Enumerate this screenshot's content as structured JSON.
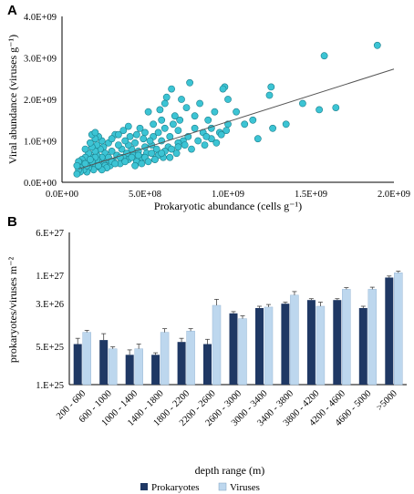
{
  "chart_data": [
    {
      "panel": "A",
      "type": "scatter",
      "xlabel": "Prokaryotic abundance (cells g⁻¹)",
      "ylabel": "Viral abundance (viruses g⁻¹)",
      "xlim": [
        0,
        2000000000
      ],
      "ylim": [
        0,
        4000000000
      ],
      "x_ticks": [
        0,
        500000000,
        1000000000,
        1500000000,
        2000000000
      ],
      "x_tick_labels": [
        "0.0E+00",
        "5.0E+08",
        "1.0E+09",
        "1.5E+09",
        "2.0E+09"
      ],
      "y_ticks": [
        0,
        1000000000,
        2000000000,
        3000000000,
        4000000000
      ],
      "y_tick_labels": [
        "0.0E+00",
        "1.0E+09",
        "2.0E+09",
        "3.0E+09",
        "4.0E+09"
      ],
      "grid": false,
      "marker_color": "#3cc4d4",
      "trendline": {
        "x": [
          100000000,
          2000000000
        ],
        "y": [
          320000000,
          2730000000
        ]
      },
      "points": [
        [
          1900000000.0,
          3300000000.0
        ],
        [
          1580000000.0,
          3050000000.0
        ],
        [
          1650000000.0,
          1800000000.0
        ],
        [
          1550000000.0,
          1750000000.0
        ],
        [
          1450000000.0,
          1900000000.0
        ],
        [
          1350000000.0,
          1400000000.0
        ],
        [
          1260000000.0,
          2300000000.0
        ],
        [
          1250000000.0,
          2100000000.0
        ],
        [
          1270000000.0,
          1300000000.0
        ],
        [
          1150000000.0,
          1500000000.0
        ],
        [
          1180000000.0,
          1050000000.0
        ],
        [
          1100000000.0,
          1400000000.0
        ],
        [
          1050000000.0,
          1700000000.0
        ],
        [
          1000000000.0,
          2000000000.0
        ],
        [
          980000000.0,
          2300000000.0
        ],
        [
          970000000.0,
          2250000000.0
        ],
        [
          1000000000.0,
          1400000000.0
        ],
        [
          950000000.0,
          1200000000.0
        ],
        [
          920000000.0,
          1700000000.0
        ],
        [
          900000000.0,
          1050000000.0
        ],
        [
          880000000.0,
          1500000000.0
        ],
        [
          860000000.0,
          900000000.0
        ],
        [
          850000000.0,
          1200000000.0
        ],
        [
          830000000.0,
          1900000000.0
        ],
        [
          800000000.0,
          1600000000.0
        ],
        [
          800000000.0,
          1300000000.0
        ],
        [
          780000000.0,
          800000000.0
        ],
        [
          770000000.0,
          2400000000.0
        ],
        [
          760000000.0,
          1100000000.0
        ],
        [
          750000000.0,
          1800000000.0
        ],
        [
          730000000.0,
          1000000000.0
        ],
        [
          720000000.0,
          2000000000.0
        ],
        [
          710000000.0,
          1500000000.0
        ],
        [
          700000000.0,
          1250000000.0
        ],
        [
          700000000.0,
          950000000.0
        ],
        [
          690000000.0,
          700000000.0
        ],
        [
          680000000.0,
          1600000000.0
        ],
        [
          670000000.0,
          1400000000.0
        ],
        [
          660000000.0,
          2250000000.0
        ],
        [
          650000000.0,
          1100000000.0
        ],
        [
          640000000.0,
          850000000.0
        ],
        [
          630000000.0,
          2050000000.0
        ],
        [
          620000000.0,
          1900000000.0
        ],
        [
          620000000.0,
          1300000000.0
        ],
        [
          610000000.0,
          600000000.0
        ],
        [
          600000000.0,
          1500000000.0
        ],
        [
          600000000.0,
          1000000000.0
        ],
        [
          590000000.0,
          1750000000.0
        ],
        [
          580000000.0,
          1200000000.0
        ],
        [
          570000000.0,
          800000000.0
        ],
        [
          560000000.0,
          550000000.0
        ],
        [
          550000000.0,
          1100000000.0
        ],
        [
          550000000.0,
          1400000000.0
        ],
        [
          540000000.0,
          900000000.0
        ],
        [
          530000000.0,
          1000000000.0
        ],
        [
          520000000.0,
          1700000000.0
        ],
        [
          510000000.0,
          700000000.0
        ],
        [
          500000000.0,
          1200000000.0
        ],
        [
          500000000.0,
          850000000.0
        ],
        [
          490000000.0,
          1050000000.0
        ],
        [
          480000000.0,
          600000000.0
        ],
        [
          470000000.0,
          1300000000.0
        ],
        [
          460000000.0,
          750000000.0
        ],
        [
          450000000.0,
          1150000000.0
        ],
        [
          450000000.0,
          500000000.0
        ],
        [
          440000000.0,
          950000000.0
        ],
        [
          430000000.0,
          650000000.0
        ],
        [
          420000000.0,
          800000000.0
        ],
        [
          410000000.0,
          1100000000.0
        ],
        [
          400000000.0,
          550000000.0
        ],
        [
          400000000.0,
          900000000.0
        ],
        [
          390000000.0,
          700000000.0
        ],
        [
          380000000.0,
          1000000000.0
        ],
        [
          370000000.0,
          600000000.0
        ],
        [
          360000000.0,
          800000000.0
        ],
        [
          350000000.0,
          450000000.0
        ],
        [
          340000000.0,
          900000000.0
        ],
        [
          330000000.0,
          650000000.0
        ],
        [
          320000000.0,
          1150000000.0
        ],
        [
          310000000.0,
          500000000.0
        ],
        [
          300000000.0,
          750000000.0
        ],
        [
          290000000.0,
          400000000.0
        ],
        [
          280000000.0,
          950000000.0
        ],
        [
          270000000.0,
          550000000.0
        ],
        [
          260000000.0,
          700000000.0
        ],
        [
          250000000.0,
          850000000.0
        ],
        [
          250000000.0,
          450000000.0
        ],
        [
          240000000.0,
          1000000000.0
        ],
        [
          240000000.0,
          600000000.0
        ],
        [
          230000000.0,
          350000000.0
        ],
        [
          230000000.0,
          800000000.0
        ],
        [
          220000000.0,
          1100000000.0
        ],
        [
          220000000.0,
          500000000.0
        ],
        [
          210000000.0,
          650000000.0
        ],
        [
          210000000.0,
          900000000.0
        ],
        [
          200000000.0,
          400000000.0
        ],
        [
          200000000.0,
          750000000.0
        ],
        [
          200000000.0,
          1050000000.0
        ],
        [
          190000000.0,
          550000000.0
        ],
        [
          190000000.0,
          300000000.0
        ],
        [
          180000000.0,
          850000000.0
        ],
        [
          180000000.0,
          600000000.0
        ],
        [
          170000000.0,
          450000000.0
        ],
        [
          170000000.0,
          950000000.0
        ],
        [
          160000000.0,
          350000000.0
        ],
        [
          160000000.0,
          700000000.0
        ],
        [
          150000000.0,
          500000000.0
        ],
        [
          150000000.0,
          250000000.0
        ],
        [
          140000000.0,
          600000000.0
        ],
        [
          140000000.0,
          800000000.0
        ],
        [
          130000000.0,
          400000000.0
        ],
        [
          130000000.0,
          300000000.0
        ],
        [
          120000000.0,
          550000000.0
        ],
        [
          120000000.0,
          450000000.0
        ],
        [
          110000000.0,
          350000000.0
        ],
        [
          110000000.0,
          250000000.0
        ],
        [
          100000000.0,
          500000000.0
        ],
        [
          100000000.0,
          300000000.0
        ],
        [
          90000000.0,
          400000000.0
        ],
        [
          90000000.0,
          200000000.0
        ],
        [
          260000000.0,
          400000000.0
        ],
        [
          280000000.0,
          600000000.0
        ],
        [
          300000000.0,
          500000000.0
        ],
        [
          270000000.0,
          350000000.0
        ],
        [
          240000000.0,
          300000000.0
        ],
        [
          220000000.0,
          400000000.0
        ],
        [
          210000000.0,
          550000000.0
        ],
        [
          200000000.0,
          600000000.0
        ],
        [
          180000000.0,
          500000000.0
        ],
        [
          170000000.0,
          550000000.0
        ],
        [
          150000000.0,
          400000000.0
        ],
        [
          140000000.0,
          450000000.0
        ],
        [
          320000000.0,
          450000000.0
        ],
        [
          350000000.0,
          600000000.0
        ],
        [
          380000000.0,
          500000000.0
        ],
        [
          420000000.0,
          600000000.0
        ],
        [
          460000000.0,
          650000000.0
        ],
        [
          500000000.0,
          600000000.0
        ],
        [
          540000000.0,
          700000000.0
        ],
        [
          580000000.0,
          650000000.0
        ],
        [
          620000000.0,
          750000000.0
        ],
        [
          660000000.0,
          800000000.0
        ],
        [
          700000000.0,
          850000000.0
        ],
        [
          740000000.0,
          900000000.0
        ],
        [
          650000000.0,
          600000000.0
        ],
        [
          600000000.0,
          700000000.0
        ],
        [
          440000000.0,
          400000000.0
        ],
        [
          480000000.0,
          450000000.0
        ],
        [
          520000000.0,
          500000000.0
        ],
        [
          560000000.0,
          550000000.0
        ],
        [
          820000000.0,
          1000000000.0
        ],
        [
          870000000.0,
          1100000000.0
        ],
        [
          900000000.0,
          1300000000.0
        ],
        [
          930000000.0,
          950000000.0
        ],
        [
          960000000.0,
          1150000000.0
        ],
        [
          990000000.0,
          1250000000.0
        ],
        [
          300000000.0,
          1050000000.0
        ],
        [
          340000000.0,
          1150000000.0
        ],
        [
          370000000.0,
          1250000000.0
        ],
        [
          400000000.0,
          1350000000.0
        ],
        [
          180000000.0,
          1150000000.0
        ],
        [
          200000000.0,
          1200000000.0
        ]
      ]
    },
    {
      "panel": "B",
      "type": "bar",
      "xlabel": "depth range (m)",
      "ylabel": "prokaryotes/viruses m⁻²",
      "yscale": "log",
      "ylim": [
        1e+25,
        6e+27
      ],
      "y_ticks": [
        1e+25,
        5e+25,
        3e+26,
        1e+27,
        6e+27
      ],
      "y_tick_labels": [
        "1.E+25",
        "5.E+25",
        "3.E+26",
        "1.E+27",
        "6.E+27"
      ],
      "categories": [
        "200 - 600",
        "600 - 1000",
        "1000 - 1400",
        "1400 - 1800",
        "1800 - 2200",
        "2200 - 2600",
        "2600 - 3000",
        "3000 - 3400",
        "3400 - 3800",
        "3800 - 4200",
        "4200 - 4600",
        "4600 - 5000",
        ">5000"
      ],
      "series": [
        {
          "name": "Prokaryotes",
          "color": "#1f3864",
          "values": [
            5.5e+25,
            6.5e+25,
            3.5e+25,
            3.5e+25,
            6e+25,
            5.5e+25,
            2e+26,
            2.5e+26,
            3e+26,
            3.5e+26,
            3.5e+26,
            2.5e+26,
            9e+26
          ],
          "errors": [
            1.5e+25,
            2e+25,
            8e+24,
            3e+24,
            1e+25,
            1.2e+25,
            1.5e+25,
            2e+25,
            2e+25,
            2e+25,
            2e+25,
            2e+25,
            6e+25
          ]
        },
        {
          "name": "Viruses",
          "color": "#bdd7ee",
          "values": [
            9e+25,
            4.5e+25,
            4.5e+25,
            9e+25,
            9.5e+25,
            2.8e+26,
            1.6e+26,
            2.6e+26,
            4.3e+26,
            2.7e+26,
            5.5e+26,
            5.5e+26,
            1.1e+27
          ],
          "errors": [
            8e+24,
            4e+24,
            1e+25,
            1.5e+25,
            1e+25,
            8e+25,
            2e+25,
            3e+25,
            7e+25,
            5e+25,
            4e+25,
            5e+25,
            8e+25
          ]
        }
      ]
    }
  ]
}
